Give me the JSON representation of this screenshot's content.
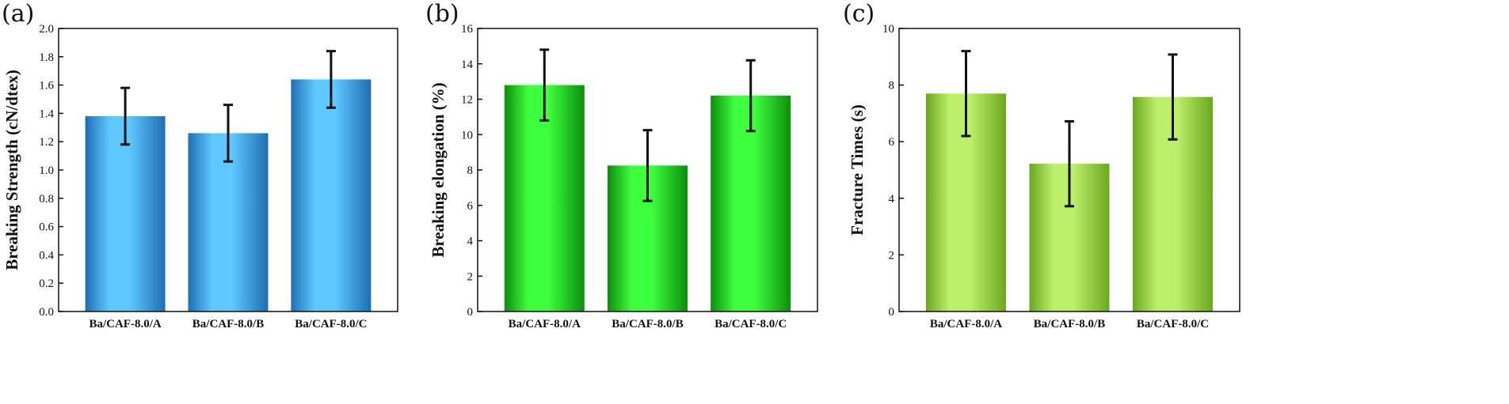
{
  "chart_data": [
    {
      "panel": "(a)",
      "type": "bar",
      "categories": [
        "Ba/CAF-8.0/A",
        "Ba/CAF-8.0/B",
        "Ba/CAF-8.0/C"
      ],
      "values": [
        1.38,
        1.26,
        1.64
      ],
      "errors": [
        0.2,
        0.2,
        0.2
      ],
      "ylabel": "Breaking Strength (cN/dtex)",
      "ylim": [
        0,
        2.0
      ],
      "yticks": [
        "0.0",
        "0.2",
        "0.4",
        "0.6",
        "0.8",
        "1.0",
        "1.2",
        "1.4",
        "1.6",
        "1.8",
        "2.0"
      ],
      "ytick_values": [
        0,
        0.2,
        0.4,
        0.6,
        0.8,
        1.0,
        1.2,
        1.4,
        1.6,
        1.8,
        2.0
      ],
      "colors": {
        "light": "#5ec8ff",
        "dark": "#1e6eb4"
      },
      "grid": false
    },
    {
      "panel": "(b)",
      "type": "bar",
      "categories": [
        "Ba/CAF-8.0/A",
        "Ba/CAF-8.0/B",
        "Ba/CAF-8.0/C"
      ],
      "values": [
        12.8,
        8.25,
        12.2
      ],
      "errors": [
        2.0,
        2.0,
        2.0
      ],
      "ylabel": "Breaking elongation (%)",
      "ylim": [
        0,
        16
      ],
      "yticks": [
        "0",
        "2",
        "4",
        "6",
        "8",
        "10",
        "12",
        "14",
        "16"
      ],
      "ytick_values": [
        0,
        2,
        4,
        6,
        8,
        10,
        12,
        14,
        16
      ],
      "colors": {
        "light": "#3dff3d",
        "dark": "#0b8f0b"
      },
      "grid": false
    },
    {
      "panel": "(c)",
      "type": "bar",
      "categories": [
        "Ba/CAF-8.0/A",
        "Ba/CAF-8.0/B",
        "Ba/CAF-8.0/C"
      ],
      "values": [
        7.7,
        5.22,
        7.58
      ],
      "errors": [
        1.5,
        1.5,
        1.5
      ],
      "ylabel": "Fracture Times (s)",
      "ylim": [
        0,
        10
      ],
      "yticks": [
        "0",
        "2",
        "4",
        "6",
        "8",
        "10"
      ],
      "ytick_values": [
        0,
        2,
        4,
        6,
        8,
        10
      ],
      "colors": {
        "light": "#bdf06a",
        "dark": "#6aa81e"
      },
      "grid": false
    }
  ]
}
